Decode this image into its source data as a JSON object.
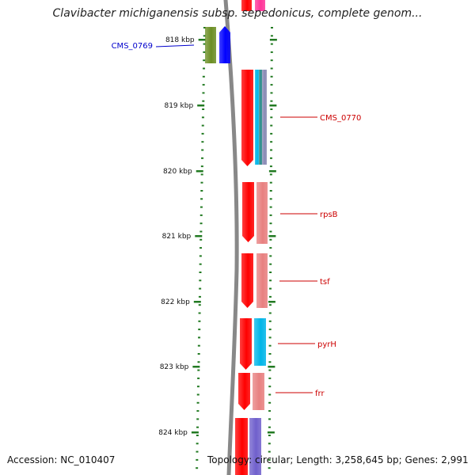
{
  "title": "Clavibacter michiganensis subsp. sepedonicus, complete genom...",
  "footer": {
    "accession": "Accession: NC_010407",
    "topology": "Topology: circular; Length: 3,258,645 bp; Genes: 2,991"
  },
  "scale_ticks": [
    "818 kbp",
    "819 kbp",
    "820 kbp",
    "821 kbp",
    "822 kbp",
    "823 kbp",
    "824 kbp"
  ],
  "genes": [
    {
      "label": "CMS_0769",
      "color": "#0000cc"
    },
    {
      "label": "CMS_0770",
      "color": "#cc0000"
    },
    {
      "label": "rpsB",
      "color": "#cc0000"
    },
    {
      "label": "tsf",
      "color": "#cc0000"
    },
    {
      "label": "pyrH",
      "color": "#cc0000"
    },
    {
      "label": "frr",
      "color": "#cc0000"
    }
  ],
  "colors": {
    "backbone": "#888888",
    "scale_green": "#227a22",
    "cds_red": "#ff0000",
    "blue": "#0000ff",
    "olive": "#6b8e23",
    "cyan": "#00b5e8",
    "pink": "#e88080",
    "violet": "#7060cc",
    "magenta": "#ff3399"
  }
}
